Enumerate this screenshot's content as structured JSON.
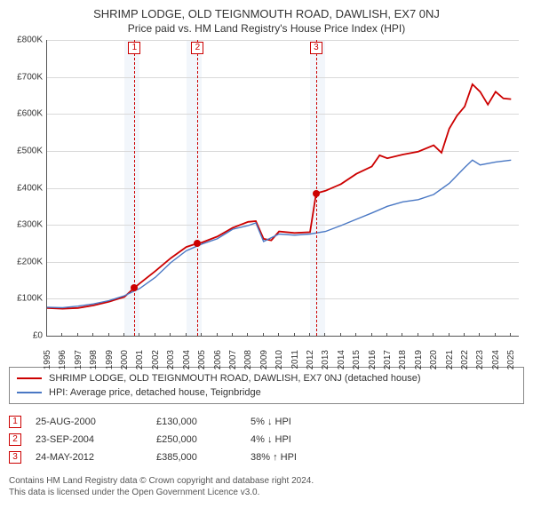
{
  "title": "SHRIMP LODGE, OLD TEIGNMOUTH ROAD, DAWLISH, EX7 0NJ",
  "subtitle": "Price paid vs. HM Land Registry's House Price Index (HPI)",
  "chart": {
    "type": "line",
    "xlim": [
      1995,
      2025.5
    ],
    "ylim": [
      0,
      800000
    ],
    "ytick_step": 100000,
    "yticklabels": [
      "£0",
      "£100K",
      "£200K",
      "£300K",
      "£400K",
      "£500K",
      "£600K",
      "£700K",
      "£800K"
    ],
    "xticks": [
      1995,
      1996,
      1997,
      1998,
      1999,
      2000,
      2001,
      2002,
      2003,
      2004,
      2005,
      2006,
      2007,
      2008,
      2009,
      2010,
      2011,
      2012,
      2013,
      2014,
      2015,
      2016,
      2017,
      2018,
      2019,
      2020,
      2021,
      2022,
      2023,
      2024,
      2025
    ],
    "grid_color": "#d9d9d9",
    "background_color": "#ffffff",
    "highlight_band_color": "#f2f6fb",
    "highlight_years": [
      2000,
      2004,
      2012
    ],
    "event_line_color": "#cc0000",
    "series": [
      {
        "name": "price_paid",
        "color": "#cc0000",
        "width": 1.8,
        "legend_label": "SHRIMP LODGE, OLD TEIGNMOUTH ROAD, DAWLISH, EX7 0NJ (detached house)",
        "points": [
          [
            1995.0,
            75000
          ],
          [
            1996.0,
            73000
          ],
          [
            1997.0,
            75000
          ],
          [
            1998.0,
            82000
          ],
          [
            1999.0,
            92000
          ],
          [
            2000.0,
            105000
          ],
          [
            2000.65,
            130000
          ],
          [
            2001.0,
            142000
          ],
          [
            2002.0,
            175000
          ],
          [
            2003.0,
            210000
          ],
          [
            2004.0,
            240000
          ],
          [
            2004.73,
            250000
          ],
          [
            2005.0,
            252000
          ],
          [
            2006.0,
            268000
          ],
          [
            2007.0,
            292000
          ],
          [
            2008.0,
            308000
          ],
          [
            2008.5,
            310000
          ],
          [
            2009.0,
            262000
          ],
          [
            2009.5,
            258000
          ],
          [
            2010.0,
            282000
          ],
          [
            2011.0,
            278000
          ],
          [
            2012.0,
            280000
          ],
          [
            2012.4,
            385000
          ],
          [
            2013.0,
            392000
          ],
          [
            2014.0,
            410000
          ],
          [
            2015.0,
            438000
          ],
          [
            2016.0,
            458000
          ],
          [
            2016.5,
            488000
          ],
          [
            2017.0,
            480000
          ],
          [
            2018.0,
            490000
          ],
          [
            2019.0,
            498000
          ],
          [
            2020.0,
            515000
          ],
          [
            2020.5,
            495000
          ],
          [
            2021.0,
            560000
          ],
          [
            2021.5,
            595000
          ],
          [
            2022.0,
            620000
          ],
          [
            2022.5,
            680000
          ],
          [
            2023.0,
            660000
          ],
          [
            2023.5,
            625000
          ],
          [
            2024.0,
            660000
          ],
          [
            2024.5,
            642000
          ],
          [
            2025.0,
            640000
          ]
        ]
      },
      {
        "name": "hpi",
        "color": "#4a78c4",
        "width": 1.4,
        "legend_label": "HPI: Average price, detached house, Teignbridge",
        "points": [
          [
            1995.0,
            77000
          ],
          [
            1996.0,
            76000
          ],
          [
            1997.0,
            80000
          ],
          [
            1998.0,
            86000
          ],
          [
            1999.0,
            95000
          ],
          [
            2000.0,
            108000
          ],
          [
            2001.0,
            128000
          ],
          [
            2002.0,
            158000
          ],
          [
            2003.0,
            198000
          ],
          [
            2004.0,
            230000
          ],
          [
            2005.0,
            248000
          ],
          [
            2006.0,
            262000
          ],
          [
            2007.0,
            288000
          ],
          [
            2008.0,
            298000
          ],
          [
            2008.5,
            305000
          ],
          [
            2009.0,
            255000
          ],
          [
            2010.0,
            275000
          ],
          [
            2011.0,
            272000
          ],
          [
            2012.0,
            275000
          ],
          [
            2013.0,
            282000
          ],
          [
            2014.0,
            298000
          ],
          [
            2015.0,
            315000
          ],
          [
            2016.0,
            332000
          ],
          [
            2017.0,
            350000
          ],
          [
            2018.0,
            362000
          ],
          [
            2019.0,
            368000
          ],
          [
            2020.0,
            382000
          ],
          [
            2021.0,
            412000
          ],
          [
            2022.0,
            455000
          ],
          [
            2022.5,
            475000
          ],
          [
            2023.0,
            462000
          ],
          [
            2024.0,
            470000
          ],
          [
            2025.0,
            475000
          ]
        ]
      }
    ],
    "event_markers": [
      {
        "label": "1",
        "x": 2000.65,
        "y": 130000
      },
      {
        "label": "2",
        "x": 2004.73,
        "y": 250000
      },
      {
        "label": "3",
        "x": 2012.4,
        "y": 385000
      }
    ]
  },
  "legend": {
    "rows": [
      {
        "color": "#cc0000",
        "label_key": "chart.series.0.legend_label"
      },
      {
        "color": "#4a78c4",
        "label_key": "chart.series.1.legend_label"
      }
    ]
  },
  "events_table": [
    {
      "num": "1",
      "date": "25-AUG-2000",
      "price": "£130,000",
      "diff": "5% ↓ HPI"
    },
    {
      "num": "2",
      "date": "23-SEP-2004",
      "price": "£250,000",
      "diff": "4% ↓ HPI"
    },
    {
      "num": "3",
      "date": "24-MAY-2012",
      "price": "£385,000",
      "diff": "38% ↑ HPI"
    }
  ],
  "footer": {
    "line1": "Contains HM Land Registry data © Crown copyright and database right 2024.",
    "line2": "This data is licensed under the Open Government Licence v3.0."
  }
}
